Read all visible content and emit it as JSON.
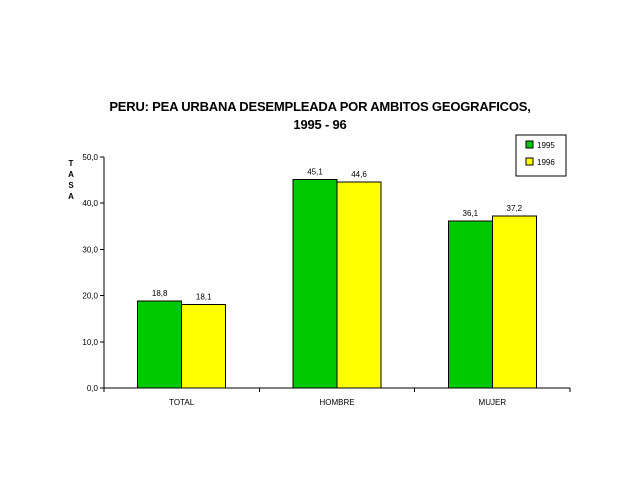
{
  "chart_data": {
    "type": "bar",
    "title": "PERU: PEA URBANA DESEMPLEADA POR AMBITOS GEOGRAFICOS,",
    "subtitle": "1995 - 96",
    "ylabel": "TASA",
    "xlabel": "",
    "categories": [
      "TOTAL",
      "HOMBRE",
      "MUJER"
    ],
    "series": [
      {
        "name": "1995",
        "values": [
          18.8,
          45.1,
          36.1
        ],
        "labels": [
          "18,8",
          "45,1",
          "36,1"
        ],
        "color": "#00c800"
      },
      {
        "name": "1996",
        "values": [
          18.1,
          44.6,
          37.2
        ],
        "labels": [
          "18,1",
          "44,6",
          "37,2"
        ],
        "color": "#ffff00"
      }
    ],
    "ylim": [
      0,
      50
    ],
    "yticks": [
      0,
      10,
      20,
      30,
      40,
      50
    ],
    "ytick_labels": [
      "0,0",
      "10,0",
      "20,0",
      "30,0",
      "40,0",
      "50,0"
    ],
    "legend_position": "top-right",
    "grid": false
  }
}
